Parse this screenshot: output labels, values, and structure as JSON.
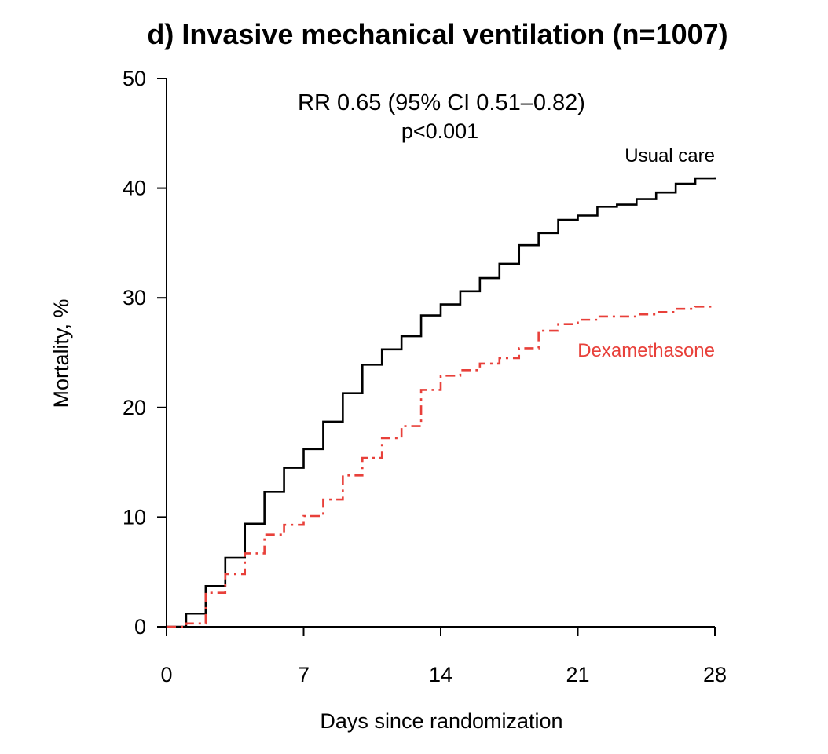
{
  "chart_data": {
    "type": "line",
    "subtype": "step",
    "title": "d) Invasive mechanical ventilation (n=1007)",
    "xlabel": "Days since randomization",
    "ylabel": "Mortality, %",
    "xlim": [
      0,
      28
    ],
    "ylim": [
      0,
      50
    ],
    "xticks": [
      0,
      7,
      14,
      21,
      28
    ],
    "yticks": [
      0,
      10,
      20,
      30,
      40,
      50
    ],
    "grid": false,
    "annotations": [
      "RR 0.65 (95% CI 0.51–0.82)",
      "p<0.001"
    ],
    "series": [
      {
        "name": "Usual care",
        "color": "#000000",
        "line_style": "solid",
        "x": [
          0,
          1,
          2,
          3,
          4,
          5,
          6,
          7,
          8,
          9,
          10,
          11,
          12,
          13,
          14,
          15,
          16,
          17,
          18,
          19,
          20,
          21,
          22,
          23,
          24,
          25,
          26,
          27,
          28
        ],
        "y": [
          0,
          1.2,
          3.7,
          6.3,
          9.4,
          12.3,
          14.5,
          16.2,
          18.7,
          21.3,
          23.9,
          25.3,
          26.5,
          28.4,
          29.4,
          30.6,
          31.8,
          33.1,
          34.8,
          35.9,
          37.1,
          37.5,
          38.3,
          38.5,
          39.0,
          39.6,
          40.4,
          40.9,
          41.0
        ]
      },
      {
        "name": "Dexamethasone",
        "color": "#e8403a",
        "line_style": "dashdot",
        "x": [
          0,
          1,
          2,
          3,
          4,
          5,
          6,
          7,
          8,
          9,
          10,
          11,
          12,
          13,
          14,
          15,
          16,
          17,
          18,
          19,
          20,
          21,
          22,
          23,
          24,
          25,
          26,
          27,
          28
        ],
        "y": [
          0,
          0.3,
          3.1,
          4.8,
          6.7,
          8.4,
          9.3,
          10.1,
          11.6,
          13.8,
          15.4,
          17.2,
          18.3,
          21.6,
          22.9,
          23.4,
          24.0,
          24.5,
          25.4,
          27.0,
          27.6,
          28.0,
          28.3,
          28.3,
          28.5,
          28.7,
          29.0,
          29.2,
          29.3
        ]
      }
    ]
  }
}
